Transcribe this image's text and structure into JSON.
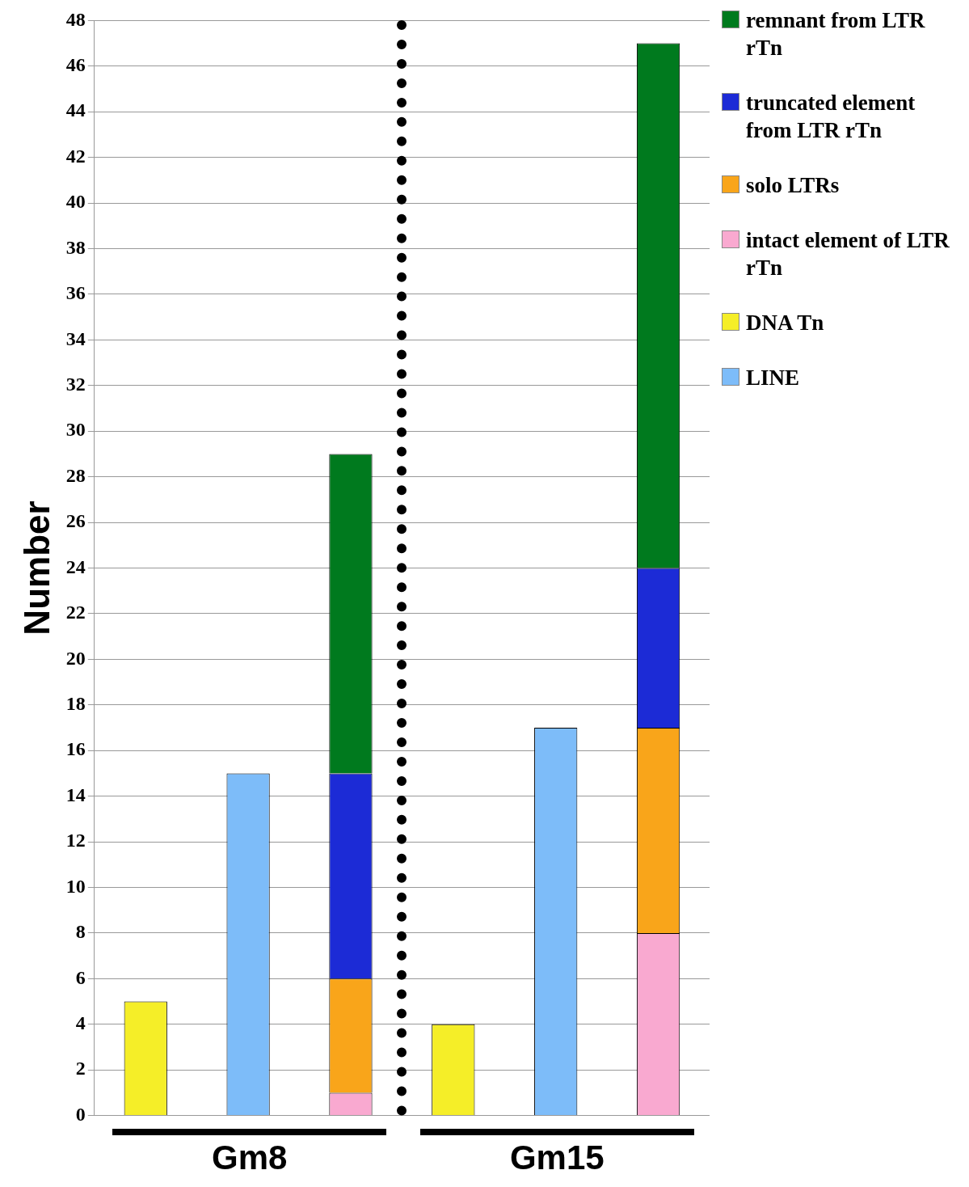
{
  "chart_data": {
    "type": "bar",
    "stacked": true,
    "ylabel": "Number",
    "categories": [
      null,
      null,
      null,
      null,
      null,
      null
    ],
    "series": [
      {
        "name": "LINE",
        "color": "#7dbcf9",
        "values": [
          null,
          15,
          null,
          null,
          17,
          null
        ]
      },
      {
        "name": "DNA Tn",
        "color": "#f5ee28",
        "values": [
          5,
          null,
          null,
          4,
          null,
          null
        ]
      },
      {
        "name": "intact element of LTR rTn",
        "color": "#f9a9d0",
        "values": [
          null,
          null,
          1,
          null,
          null,
          8
        ]
      },
      {
        "name": "solo LTRs",
        "color": "#f9a51a",
        "values": [
          null,
          null,
          5,
          null,
          null,
          9
        ]
      },
      {
        "name": "truncated element from LTR rTn",
        "color": "#1c2bd6",
        "values": [
          null,
          null,
          9,
          null,
          null,
          7
        ]
      },
      {
        "name": "remnant from LTR rTn",
        "color": "#007a1e",
        "values": [
          null,
          null,
          14,
          null,
          null,
          23
        ]
      }
    ],
    "ylim": [
      0,
      48
    ],
    "yticks": [
      0,
      2,
      4,
      6,
      8,
      10,
      12,
      14,
      16,
      18,
      20,
      22,
      24,
      26,
      28,
      30,
      32,
      34,
      36,
      38,
      40,
      42,
      44,
      46,
      48
    ],
    "grid": "y",
    "legend": "right",
    "annotations": [
      "Gm8",
      "Gm15"
    ]
  }
}
